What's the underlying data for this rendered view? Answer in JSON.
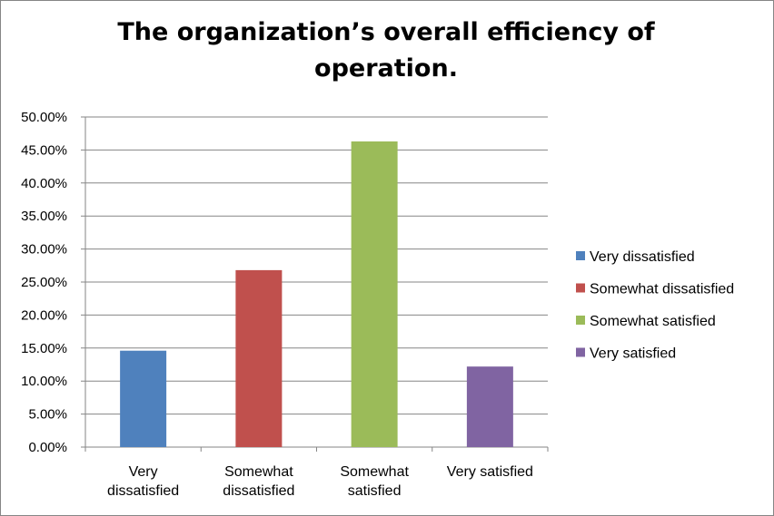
{
  "chart_data": {
    "type": "bar",
    "title": "The organization’s overall efficiency of operation.",
    "categories": [
      [
        "Very",
        "dissatisfied"
      ],
      [
        "Somewhat",
        "dissatisfied"
      ],
      [
        "Somewhat",
        "satisfied"
      ],
      [
        "Very satisfied"
      ]
    ],
    "values": [
      14.6,
      26.8,
      46.3,
      12.2
    ],
    "unit": "%",
    "yticks": [
      "0.00%",
      "5.00%",
      "10.00%",
      "15.00%",
      "20.00%",
      "25.00%",
      "30.00%",
      "35.00%",
      "40.00%",
      "45.00%",
      "50.00%"
    ],
    "ylim": [
      0,
      50
    ],
    "grid": true,
    "legend_position": "right",
    "legend": [
      "Very dissatisfied",
      "Somewhat dissatisfied",
      "Somewhat satisfied",
      "Very satisfied"
    ],
    "colors": [
      "#4f81bd",
      "#c0504d",
      "#9bbb59",
      "#8064a2"
    ],
    "gridline_color": "#868686"
  }
}
